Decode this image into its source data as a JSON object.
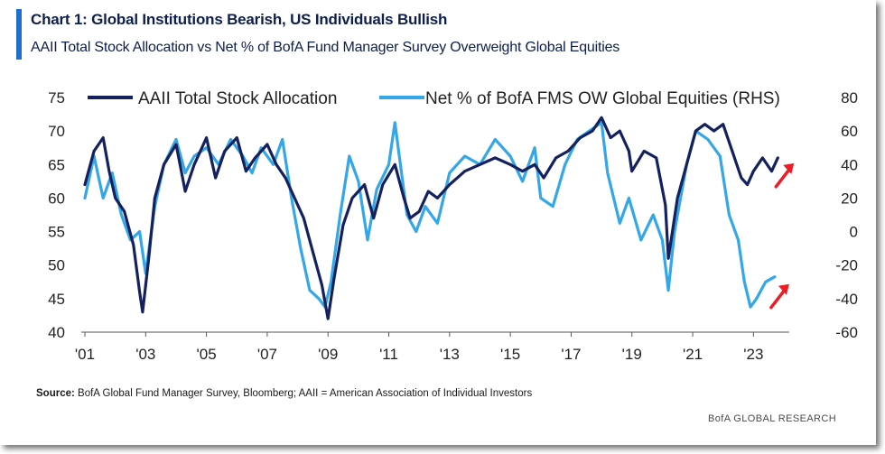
{
  "title": "Chart 1: Global Institutions Bearish, US Individuals Bullish",
  "subtitle": "AAII Total Stock Allocation vs Net % of BofA Fund Manager Survey Overweight Global Equities",
  "source_label": "Source:",
  "source_text": " BofA Global Fund Manager Survey, Bloomberg; AAII = American Association of Individual Investors",
  "footer": "BofA GLOBAL RESEARCH",
  "colors": {
    "aaii": "#14215e",
    "bofa": "#34a7e8",
    "arrow": "#ee1c25",
    "accent": "#1f6fd0",
    "text": "#1a1a1a"
  },
  "chart_data": {
    "type": "line",
    "x_ticks": [
      "'01",
      "'03",
      "'05",
      "'07",
      "'09",
      "'11",
      "'13",
      "'15",
      "'17",
      "'19",
      "'21",
      "'23"
    ],
    "x_tick_years": [
      2001,
      2003,
      2005,
      2007,
      2009,
      2011,
      2013,
      2015,
      2017,
      2019,
      2021,
      2023
    ],
    "xlim": [
      2001,
      2024
    ],
    "ylim_left": [
      40,
      75
    ],
    "yticks_left": [
      40,
      45,
      50,
      55,
      60,
      65,
      70,
      75
    ],
    "ylim_right": [
      -60,
      80
    ],
    "yticks_right": [
      -60,
      -40,
      -20,
      0,
      20,
      40,
      60,
      80
    ],
    "legend_position": "top",
    "annotations": [
      "red arrow pointing up at end of AAII series",
      "red arrow pointing up at end of FMS series"
    ],
    "series": [
      {
        "name": "AAII Total Stock Allocation",
        "axis": "left",
        "color": "#14215e",
        "x": [
          2001.0,
          2001.3,
          2001.6,
          2001.8,
          2002.0,
          2002.3,
          2002.6,
          2002.8,
          2002.9,
          2003.1,
          2003.3,
          2003.6,
          2004.0,
          2004.3,
          2004.6,
          2005.0,
          2005.3,
          2005.6,
          2006.0,
          2006.3,
          2006.6,
          2007.0,
          2007.3,
          2007.6,
          2007.9,
          2008.2,
          2008.5,
          2008.8,
          2009.0,
          2009.2,
          2009.5,
          2009.8,
          2010.2,
          2010.5,
          2010.8,
          2011.2,
          2011.5,
          2011.7,
          2012.0,
          2012.3,
          2012.6,
          2013.0,
          2013.5,
          2014.0,
          2014.5,
          2015.0,
          2015.4,
          2015.8,
          2016.1,
          2016.5,
          2016.9,
          2017.3,
          2017.7,
          2018.0,
          2018.3,
          2018.6,
          2018.9,
          2019.0,
          2019.4,
          2019.8,
          2020.1,
          2020.2,
          2020.5,
          2020.8,
          2021.1,
          2021.4,
          2021.7,
          2022.0,
          2022.3,
          2022.6,
          2022.8,
          2023.0,
          2023.3,
          2023.6,
          2023.8
        ],
        "values": [
          62,
          67,
          69,
          64,
          60,
          58,
          53,
          46,
          43,
          51,
          60,
          65,
          68,
          61,
          65,
          69,
          63,
          67,
          69,
          64,
          66,
          68,
          65,
          63,
          60,
          57,
          52,
          47,
          42,
          48,
          56,
          60,
          62,
          57,
          62,
          65,
          60,
          57,
          58,
          61,
          60,
          62,
          64,
          65,
          66,
          65,
          64,
          65,
          63,
          66,
          67,
          69,
          70,
          72,
          69,
          70,
          67,
          64,
          67,
          66,
          59,
          51,
          60,
          65,
          70,
          71,
          70,
          71,
          67,
          63,
          62,
          64,
          66,
          64,
          66
        ]
      },
      {
        "name": "Net % of BofA FMS OW Global Equities (RHS)",
        "axis": "right",
        "color": "#34a7e8",
        "x": [
          2001.0,
          2001.3,
          2001.6,
          2001.9,
          2002.2,
          2002.5,
          2002.8,
          2003.0,
          2003.3,
          2003.6,
          2004.0,
          2004.3,
          2004.6,
          2005.0,
          2005.4,
          2005.8,
          2006.2,
          2006.5,
          2006.8,
          2007.2,
          2007.5,
          2007.8,
          2008.1,
          2008.4,
          2008.7,
          2008.9,
          2009.1,
          2009.4,
          2009.7,
          2010.0,
          2010.3,
          2010.6,
          2011.0,
          2011.2,
          2011.6,
          2011.9,
          2012.2,
          2012.6,
          2013.0,
          2013.5,
          2014.0,
          2014.5,
          2015.0,
          2015.4,
          2015.8,
          2016.0,
          2016.4,
          2016.8,
          2017.2,
          2017.6,
          2018.0,
          2018.2,
          2018.6,
          2018.9,
          2019.3,
          2019.7,
          2020.0,
          2020.2,
          2020.4,
          2020.8,
          2021.1,
          2021.5,
          2021.9,
          2022.2,
          2022.5,
          2022.7,
          2022.9,
          2023.1,
          2023.4,
          2023.7
        ],
        "values": [
          20,
          45,
          20,
          35,
          10,
          -5,
          0,
          -25,
          15,
          40,
          55,
          35,
          45,
          50,
          40,
          55,
          45,
          35,
          50,
          40,
          55,
          20,
          -10,
          -35,
          -40,
          -45,
          -30,
          10,
          45,
          30,
          -5,
          25,
          40,
          65,
          10,
          0,
          15,
          5,
          35,
          45,
          40,
          55,
          45,
          30,
          50,
          20,
          15,
          40,
          55,
          60,
          65,
          35,
          5,
          20,
          -5,
          10,
          -5,
          -35,
          0,
          40,
          60,
          55,
          45,
          10,
          -5,
          -30,
          -45,
          -40,
          -30,
          -27
        ]
      }
    ]
  }
}
